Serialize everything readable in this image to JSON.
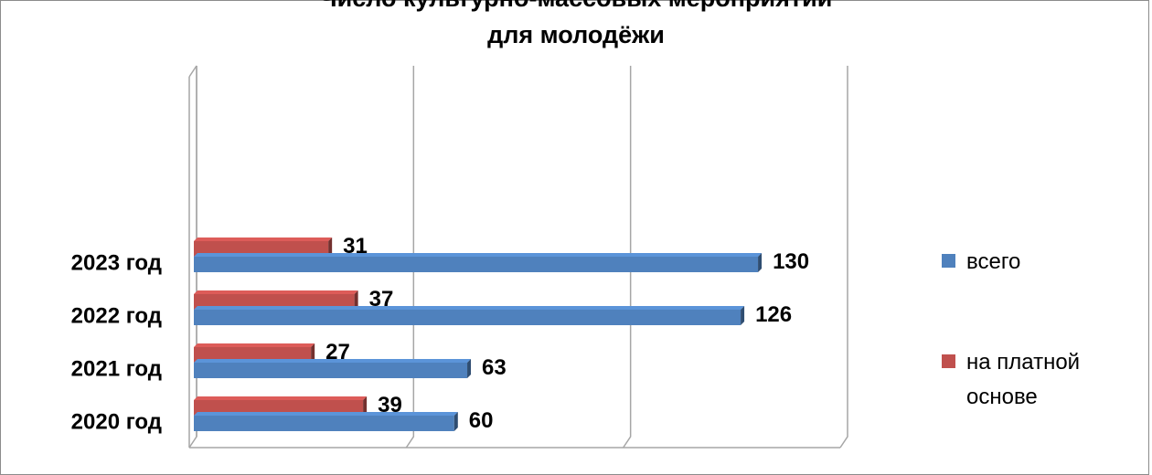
{
  "chart_data": {
    "type": "bar",
    "orientation": "horizontal",
    "title": "Число культурно-массовых мероприятий\nдля молодёжи",
    "categories": [
      "2020 год",
      "2021 год",
      "2022 год",
      "2023 год"
    ],
    "series": [
      {
        "name": "на платной основе",
        "color": "#c0504d",
        "values": [
          39,
          27,
          37,
          31
        ]
      },
      {
        "name": "всего",
        "color": "#4f81bd",
        "values": [
          60,
          63,
          126,
          130
        ]
      }
    ],
    "xlim": [
      0,
      150
    ],
    "xticks": [
      0,
      50,
      100,
      150
    ],
    "grid": true,
    "legend": "right"
  }
}
